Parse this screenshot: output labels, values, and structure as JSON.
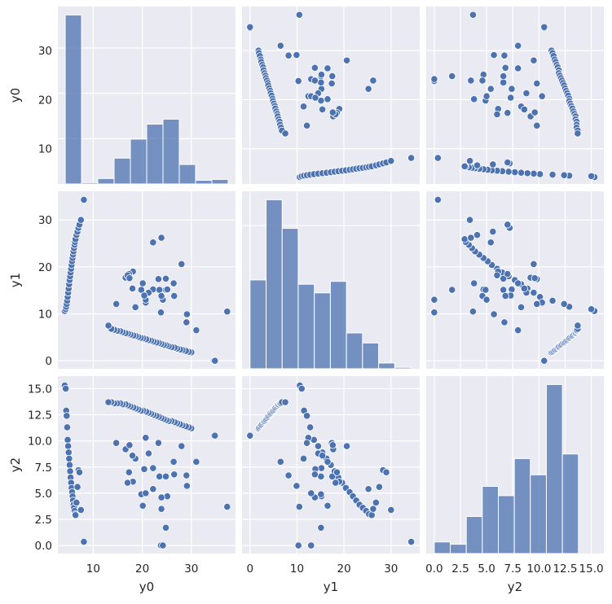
{
  "chart_data": {
    "type": "pairplot",
    "variables": [
      "y0",
      "y1",
      "y2"
    ],
    "colors": {
      "marker": "#4c72b0",
      "panel_background": "#eaeaf2",
      "grid": "#ffffff"
    },
    "axis_labels": {
      "x": [
        "y0",
        "y1",
        "y2"
      ],
      "y": [
        "y0",
        "y1",
        "y2"
      ]
    },
    "axes": {
      "y0": {
        "lim": [
          2.8,
          39.0
        ],
        "ticks": [
          10,
          20,
          30
        ]
      },
      "y1": {
        "lim": [
          -1.7,
          36.1
        ],
        "ticks": [
          0,
          10,
          20,
          30
        ]
      },
      "y2": {
        "lim": [
          -0.77,
          16.2
        ],
        "ticks": [
          0.0,
          2.5,
          5.0,
          7.5,
          10.0,
          12.5,
          15.0
        ]
      }
    },
    "tick_labels": {
      "y0": [
        "10",
        "20",
        "30"
      ],
      "y1": [
        "0",
        "10",
        "20",
        "30"
      ],
      "y2": [
        "0.0",
        "2.5",
        "5.0",
        "7.5",
        "10.0",
        "12.5",
        "15.0"
      ]
    },
    "histograms": {
      "y0": {
        "bin_edges": [
          4.3,
          7.62,
          10.94,
          14.26,
          17.58,
          20.9,
          24.22,
          27.54,
          30.86,
          34.18,
          37.5
        ],
        "counts": [
          37.3,
          0.3,
          1.2,
          5.7,
          9.9,
          13.2,
          14.3,
          4.3,
          0.8,
          1.0
        ]
      },
      "y1": {
        "bin_edges": [
          0,
          3.42,
          6.84,
          10.26,
          13.68,
          17.1,
          20.52,
          23.94,
          27.36,
          30.78,
          34.2
        ],
        "counts": [
          6.2,
          11.8,
          9.8,
          5.9,
          5.3,
          6.1,
          2.5,
          1.8,
          0.4,
          0.1
        ]
      },
      "y2": {
        "bin_edges": [
          0,
          1.53,
          3.06,
          4.59,
          6.12,
          7.65,
          9.18,
          10.71,
          12.24,
          13.77,
          15.3
        ],
        "counts": [
          0.5,
          0.4,
          1.6,
          2.9,
          2.5,
          4.1,
          3.4,
          7.3,
          4.3,
          0.0
        ]
      }
    },
    "points": {
      "y0": [
        34.6,
        34.8,
        37.3,
        30.0,
        29.5,
        28.9,
        28.2,
        27.7,
        27.1,
        26.6,
        26.0,
        25.4,
        24.9,
        24.4,
        23.9,
        23.4,
        22.9,
        22.3,
        21.8,
        21.3,
        20.8,
        20.2,
        19.7,
        19.2,
        18.7,
        18.2,
        17.6,
        17.1,
        16.6,
        16.0,
        15.5,
        14.9,
        14.3,
        13.7,
        13.1,
        4.2,
        4.4,
        4.5,
        4.6,
        4.7,
        4.8,
        4.9,
        5.0,
        5.1,
        5.2,
        5.3,
        5.4,
        5.5,
        5.6,
        5.7,
        5.8,
        5.9,
        6.0,
        6.1,
        6.2,
        6.3,
        6.4,
        6.6,
        6.8,
        7.0,
        7.2,
        7.5,
        8.1,
        31.0,
        29.0,
        29.1,
        23.8,
        24.2,
        24.8,
        25.1,
        22.2,
        28.0,
        26.4,
        23.5,
        23.9,
        20.1,
        23.3,
        24.8,
        19.8,
        23.9,
        20.7,
        21.3,
        22.2,
        18.1,
        18.6,
        16.6,
        17.3,
        17.0,
        17.4,
        14.7,
        20.7,
        20.4,
        18.0,
        26.5
      ],
      "y1": [
        0.0,
        0.0,
        10.5,
        1.8,
        1.9,
        2.1,
        2.3,
        2.4,
        2.6,
        2.8,
        2.9,
        3.1,
        3.3,
        3.4,
        3.6,
        3.8,
        3.9,
        4.1,
        4.3,
        4.4,
        4.6,
        4.8,
        4.9,
        5.1,
        5.3,
        5.4,
        5.6,
        5.8,
        5.9,
        6.1,
        6.3,
        6.4,
        6.6,
        6.8,
        7.5,
        10.6,
        11.0,
        11.5,
        12.1,
        12.8,
        13.6,
        14.5,
        15.4,
        16.3,
        17.2,
        18.0,
        18.8,
        19.6,
        20.4,
        21.2,
        21.9,
        22.6,
        23.3,
        24.0,
        24.7,
        25.3,
        25.9,
        26.8,
        27.5,
        28.3,
        29.0,
        30.0,
        34.3,
        6.5,
        8.2,
        9.9,
        10.3,
        13.0,
        15.1,
        15.2,
        15.2,
        20.6,
        16.5,
        15.1,
        13.8,
        16.5,
        17.4,
        17.5,
        15.1,
        26.2,
        12.4,
        14.5,
        25.2,
        19.0,
        11.4,
        17.7,
        18.5,
        18.2,
        17.6,
        12.1,
        13.0,
        13.9,
        15.4,
        13.8
      ],
      "y2": [
        10.5,
        10.5,
        3.7,
        11.2,
        11.3,
        11.4,
        11.5,
        11.6,
        11.7,
        11.8,
        11.9,
        11.9,
        12.0,
        12.1,
        12.2,
        12.3,
        12.4,
        12.5,
        12.6,
        12.7,
        12.8,
        12.9,
        12.9,
        13.0,
        13.1,
        13.2,
        13.3,
        13.4,
        13.5,
        13.5,
        13.6,
        13.6,
        13.6,
        13.7,
        13.7,
        15.3,
        15.0,
        12.9,
        12.4,
        11.3,
        10.1,
        9.5,
        8.9,
        8.3,
        7.7,
        7.1,
        6.5,
        6.0,
        5.5,
        5.1,
        4.7,
        4.3,
        3.9,
        3.6,
        3.3,
        3.0,
        2.9,
        4.1,
        5.6,
        7.2,
        7.0,
        3.4,
        0.35,
        8.0,
        6.7,
        5.7,
        0.0,
        0.0,
        1.7,
        4.7,
        7.4,
        9.5,
        8.0,
        6.6,
        4.6,
        3.8,
        9.8,
        6.6,
        4.9,
        3.5,
        10.3,
        8.8,
        5.4,
        6.1,
        8.3,
        9.2,
        7.0,
        6.0,
        9.6,
        9.8,
        5.0,
        7.3,
        8.6,
        6.8
      ]
    }
  }
}
